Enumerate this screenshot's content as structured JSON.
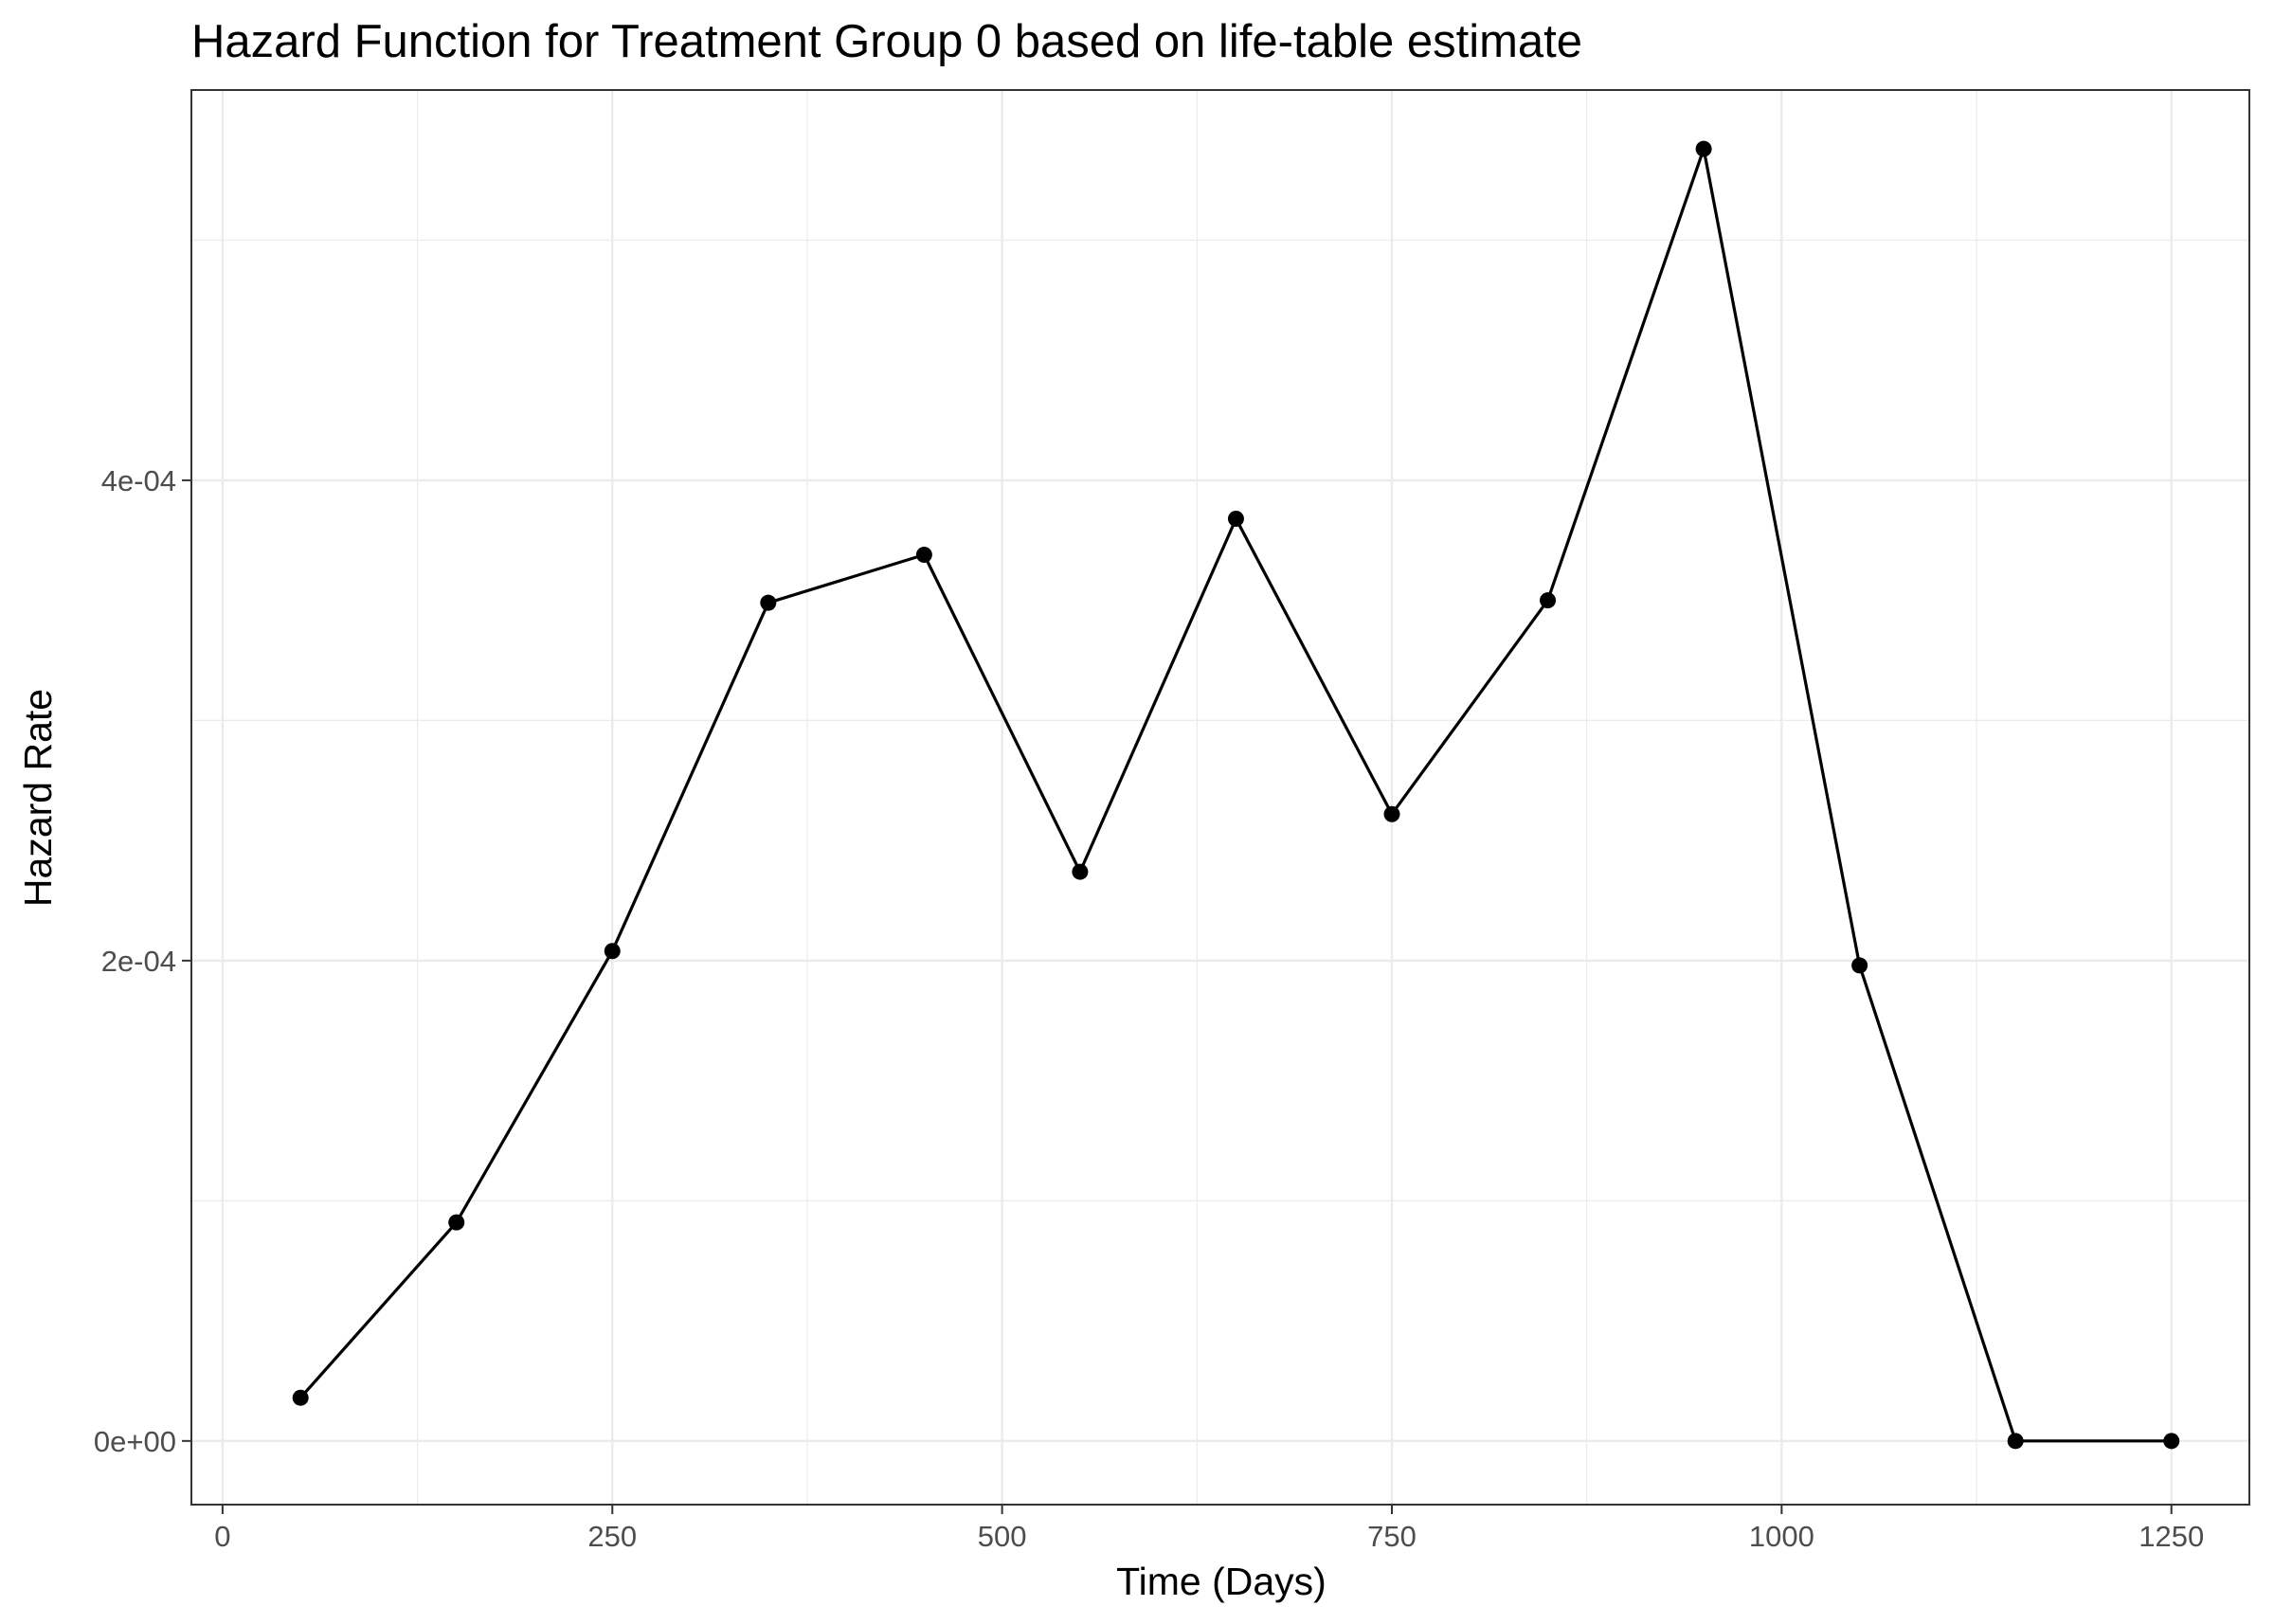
{
  "chart_data": {
    "type": "line",
    "title": "Hazard Function for Treatment Group 0 based on life-table estimate",
    "xlabel": "Time (Days)",
    "ylabel": "Hazard Rate",
    "xlim": [
      -20,
      1300
    ],
    "ylim": [
      -2.65e-05,
      0.0005625
    ],
    "x_ticks": [
      0,
      250,
      500,
      750,
      1000,
      1250
    ],
    "x_tick_labels": [
      "0",
      "250",
      "500",
      "750",
      "1000",
      "1250"
    ],
    "y_ticks": [
      0,
      0.0002,
      0.0004
    ],
    "y_tick_labels": [
      "0e+00",
      "2e-04",
      "4e-04"
    ],
    "grid": true,
    "series": [
      {
        "x": [
          50,
          150,
          250,
          350,
          450,
          550,
          650,
          750,
          850,
          950,
          1050,
          1150,
          1250
        ],
        "y": [
          1.8e-05,
          9.1e-05,
          0.000204,
          0.000349,
          0.000369,
          0.000237,
          0.000384,
          0.000261,
          0.00035,
          0.000538,
          0.000198,
          0.0,
          0.0
        ],
        "color": "#000000"
      }
    ]
  }
}
